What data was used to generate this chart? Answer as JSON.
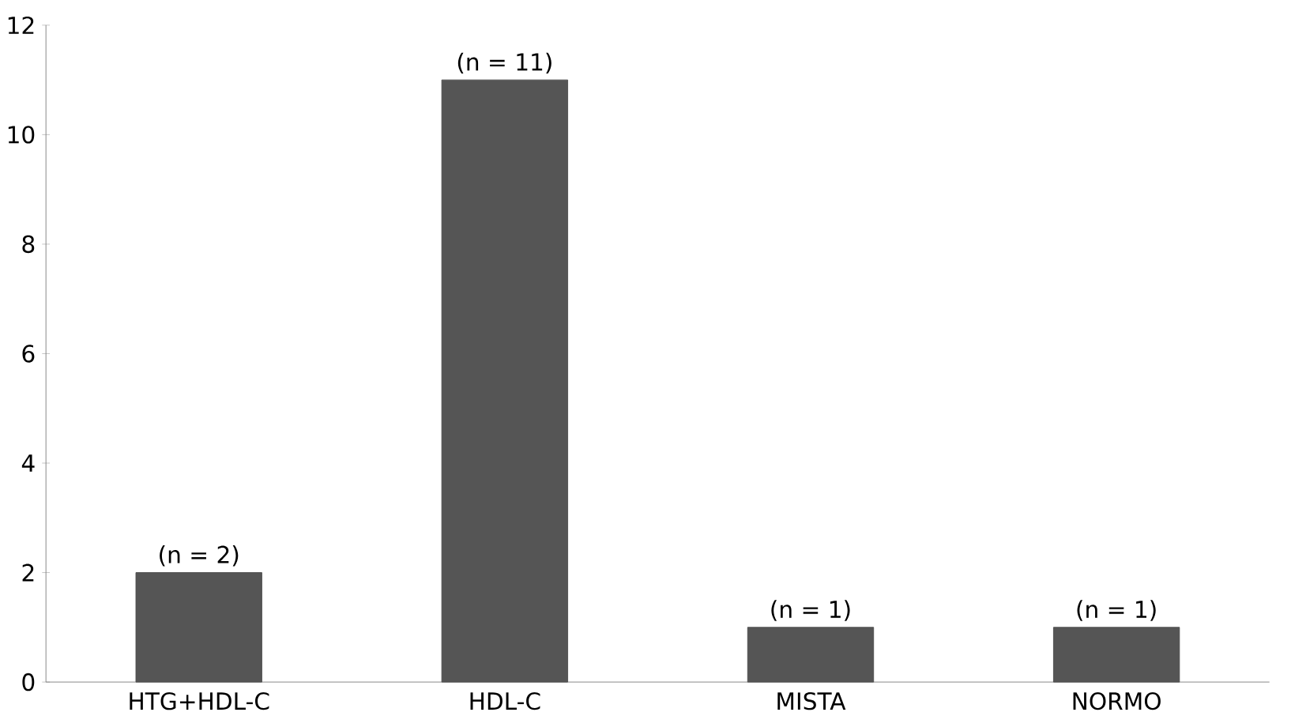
{
  "chart_data": {
    "type": "bar",
    "categories": [
      "HTG+HDL-C",
      "HDL-C",
      "MISTA",
      "NORMO"
    ],
    "values": [
      2,
      11,
      1,
      1
    ],
    "value_labels": [
      "(n = 2)",
      "(n = 11)",
      "(n = 1)",
      "(n = 1)"
    ],
    "color": "#555555",
    "ylim": [
      0,
      12
    ],
    "yticks": [
      0,
      2,
      4,
      6,
      8,
      10,
      12
    ],
    "grid": false
  }
}
